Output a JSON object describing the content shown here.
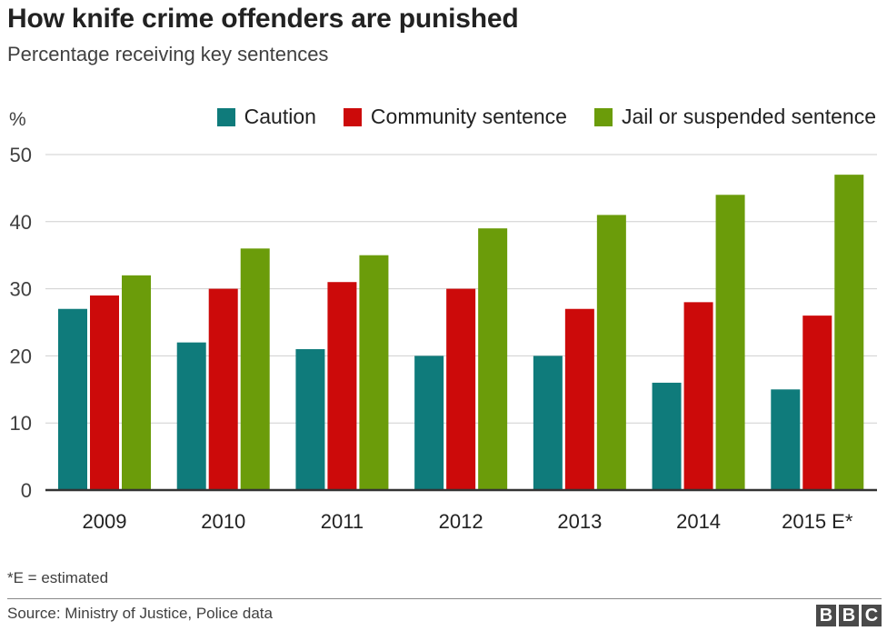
{
  "chart_data": {
    "type": "bar",
    "title": "How knife crime offenders are punished",
    "subtitle": "Percentage receiving key sentences",
    "ylabel": "%",
    "xlabel": "",
    "ylim": [
      0,
      50
    ],
    "yticks": [
      0,
      10,
      20,
      30,
      40,
      50
    ],
    "grid": true,
    "legend_position": "top-right",
    "categories": [
      "2009",
      "2010",
      "2011",
      "2012",
      "2013",
      "2014",
      "2015 E*"
    ],
    "series": [
      {
        "name": "Caution",
        "color": "#0f7b7b",
        "values": [
          27,
          22,
          21,
          20,
          20,
          16,
          15
        ]
      },
      {
        "name": "Community sentence",
        "color": "#cc0a0a",
        "values": [
          29,
          30,
          31,
          30,
          27,
          28,
          26
        ]
      },
      {
        "name": "Jail or suspended sentence",
        "color": "#6b9c0a",
        "values": [
          32,
          36,
          35,
          39,
          41,
          44,
          47
        ]
      }
    ]
  },
  "footnote": "*E = estimated",
  "source": "Source: Ministry of Justice, Police data",
  "logo": [
    "B",
    "B",
    "C"
  ]
}
